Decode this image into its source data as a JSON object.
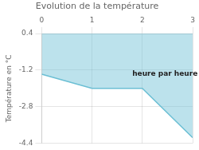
{
  "chart_data": {
    "type": "line",
    "title": "Evolution de la température",
    "y_label": "Température en °C",
    "x": [
      0,
      1,
      2,
      3
    ],
    "series": [
      {
        "values": [
          -1.38,
          -2.0,
          -2.0,
          -4.15
        ],
        "color": "#6bbfd4"
      }
    ],
    "xlim": [
      0,
      3
    ],
    "xticks": [
      0,
      1,
      2,
      3
    ],
    "ylim": [
      -4.4,
      0.4
    ],
    "yticks": [
      0.4,
      -1.2,
      -2.8,
      -4.4
    ],
    "grid": true,
    "annotations": [
      {
        "text": "heure par heure",
        "x": 2.45,
        "y": -1.35
      }
    ]
  }
}
